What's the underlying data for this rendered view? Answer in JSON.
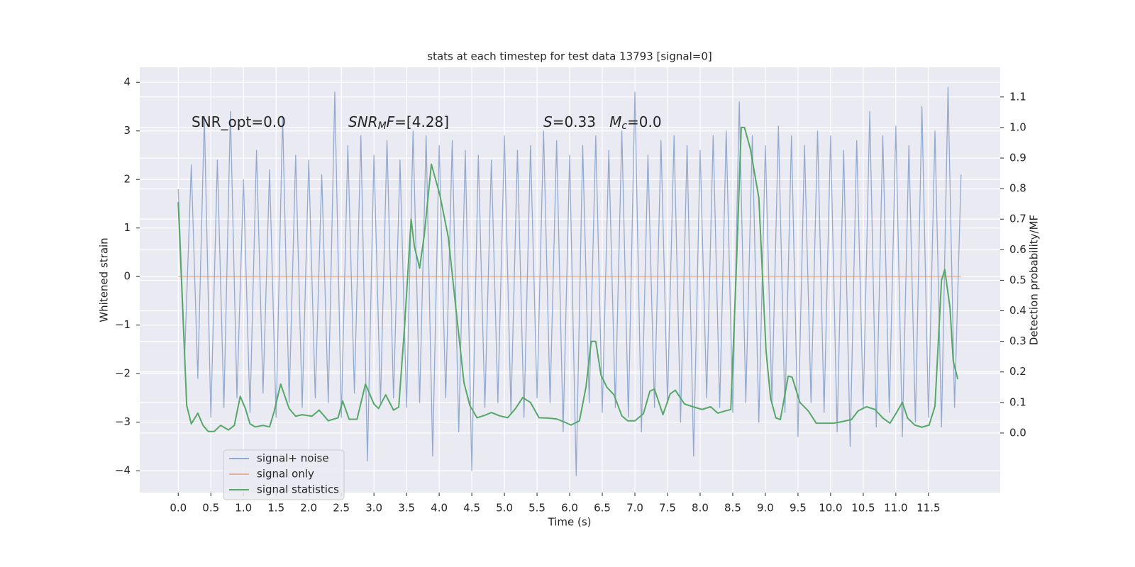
{
  "chart_data": {
    "type": "line",
    "title": "stats at each timestep for test data 13793 [signal=0]",
    "xlabel": "Time (s)",
    "ylabel": "Whitened strain",
    "y2label": "Detection probability/MF",
    "xlim": [
      -0.59,
      12.6
    ],
    "ylim": [
      -4.45,
      4.31
    ],
    "y2lim": [
      -0.195,
      1.197
    ],
    "xticks": [
      {
        "value": 0,
        "label": "0.0"
      },
      0.5,
      {
        "value": 1,
        "label": "1.0"
      },
      1.5,
      {
        "value": 2,
        "label": "2.0"
      },
      2.5,
      {
        "value": 3,
        "label": "3.0"
      },
      3.5,
      {
        "value": 4,
        "label": "4.0"
      },
      4.5,
      {
        "value": 5,
        "label": "5.0"
      },
      5.5,
      {
        "value": 6,
        "label": "6.0"
      },
      6.5,
      {
        "value": 7,
        "label": "7.0"
      },
      7.5,
      {
        "value": 8,
        "label": "8.0"
      },
      8.5,
      {
        "value": 9,
        "label": "9.0"
      },
      9.5,
      {
        "value": 10,
        "label": "10.0"
      },
      10.5,
      {
        "value": 11,
        "label": "11.0"
      },
      11.5
    ],
    "yticks": [
      {
        "value": -4,
        "label": "−4"
      },
      {
        "value": -3,
        "label": "−3"
      },
      {
        "value": -2,
        "label": "−2"
      },
      {
        "value": -1,
        "label": "−1"
      },
      0,
      1,
      2,
      3,
      4
    ],
    "y2ticks": [
      {
        "value": 0,
        "label": "0.0"
      },
      0.1,
      0.2,
      0.3,
      0.4,
      0.5,
      0.6,
      0.7,
      0.8,
      0.9,
      {
        "value": 1,
        "label": "1.0"
      },
      1.1
    ],
    "grid": true,
    "legend": "lower left",
    "annotations": [
      [
        {
          "text": "SNR_opt=0.0"
        }
      ],
      [
        {
          "text": "SNR",
          "italic": true
        },
        {
          "text": "M",
          "italic": true,
          "sub": true
        },
        {
          "text": "F",
          "italic": true
        },
        {
          "text": "=[4.28]"
        }
      ],
      [
        {
          "text": "S",
          "italic": true
        },
        {
          "text": "=0.33   "
        },
        {
          "text": "M",
          "italic": true
        },
        {
          "text": "c",
          "italic": true,
          "sub": true
        },
        {
          "text": "=0.0"
        }
      ]
    ],
    "series": [
      {
        "name": "signal+ noise",
        "color": "#4c72b0",
        "alpha": 0.55,
        "x": [
          0.0,
          0.1,
          0.2,
          0.3,
          0.4,
          0.5,
          0.6,
          0.7,
          0.8,
          0.9,
          1.0,
          1.1,
          1.2,
          1.3,
          1.4,
          1.5,
          1.6,
          1.7,
          1.8,
          1.9,
          2.0,
          2.1,
          2.2,
          2.3,
          2.4,
          2.5,
          2.6,
          2.7,
          2.8,
          2.9,
          3.0,
          3.1,
          3.2,
          3.3,
          3.4,
          3.5,
          3.6,
          3.7,
          3.8,
          3.9,
          4.0,
          4.1,
          4.2,
          4.3,
          4.4,
          4.5,
          4.6,
          4.7,
          4.8,
          4.9,
          5.0,
          5.1,
          5.2,
          5.3,
          5.4,
          5.5,
          5.6,
          5.7,
          5.8,
          5.9,
          6.0,
          6.1,
          6.2,
          6.3,
          6.4,
          6.5,
          6.6,
          6.7,
          6.8,
          6.9,
          7.0,
          7.1,
          7.2,
          7.3,
          7.4,
          7.5,
          7.6,
          7.7,
          7.8,
          7.9,
          8.0,
          8.1,
          8.2,
          8.3,
          8.4,
          8.5,
          8.6,
          8.7,
          8.8,
          8.9,
          9.0,
          9.1,
          9.2,
          9.3,
          9.4,
          9.5,
          9.6,
          9.7,
          9.8,
          9.9,
          10.0,
          10.1,
          10.2,
          10.3,
          10.4,
          10.5,
          10.6,
          10.7,
          10.8,
          10.9,
          11.0,
          11.1,
          11.2,
          11.3,
          11.4,
          11.5,
          11.6,
          11.7,
          11.8,
          11.9,
          12.0
        ],
        "values": [
          1.8,
          -1.6,
          2.3,
          -2.1,
          3.3,
          -2.9,
          2.4,
          -2.7,
          3.4,
          -2.5,
          2.0,
          -2.8,
          2.6,
          -2.4,
          2.2,
          -2.9,
          3.3,
          -2.6,
          2.5,
          -2.7,
          2.4,
          -2.5,
          2.1,
          -2.6,
          3.8,
          -2.9,
          2.7,
          -2.4,
          2.9,
          -3.8,
          2.5,
          -2.6,
          2.8,
          -2.5,
          2.4,
          -2.7,
          3.0,
          -2.6,
          2.9,
          -3.7,
          2.7,
          -2.5,
          2.8,
          -3.2,
          2.6,
          -4.0,
          2.5,
          -2.7,
          2.4,
          -2.6,
          2.9,
          -2.8,
          2.6,
          -2.9,
          2.7,
          -2.5,
          3.0,
          -2.6,
          2.8,
          -3.2,
          2.5,
          -4.1,
          2.7,
          -2.6,
          2.9,
          -2.8,
          2.6,
          -2.7,
          3.0,
          -2.9,
          3.8,
          -3.2,
          2.5,
          -2.7,
          2.8,
          -2.6,
          2.9,
          -3.0,
          2.7,
          -3.7,
          2.6,
          -2.5,
          2.9,
          -2.7,
          3.0,
          -2.8,
          3.6,
          -2.6,
          2.9,
          -3.0,
          2.7,
          -2.6,
          3.1,
          -2.8,
          2.9,
          -3.3,
          2.7,
          -2.6,
          3.0,
          -2.8,
          2.9,
          -3.2,
          2.6,
          -3.5,
          2.8,
          -2.7,
          3.4,
          -3.1,
          2.9,
          -2.8,
          3.1,
          -3.3,
          2.7,
          -3.0,
          3.5,
          -2.9,
          3.0,
          -3.1,
          3.9,
          -2.7,
          2.1
        ]
      },
      {
        "name": "signal only",
        "color": "#dd8452",
        "alpha": 0.55,
        "x": [
          0.0,
          12.0
        ],
        "values": [
          0,
          0
        ]
      },
      {
        "name": "signal statistics",
        "color": "#55a868",
        "axis": "y2",
        "x": [
          0.0,
          0.13,
          0.2,
          0.3,
          0.38,
          0.46,
          0.55,
          0.65,
          0.77,
          0.86,
          0.95,
          1.03,
          1.1,
          1.18,
          1.3,
          1.4,
          1.47,
          1.57,
          1.7,
          1.8,
          1.9,
          2.05,
          2.16,
          2.3,
          2.45,
          2.52,
          2.62,
          2.74,
          2.87,
          3.0,
          3.07,
          3.18,
          3.3,
          3.38,
          3.47,
          3.57,
          3.62,
          3.7,
          3.77,
          3.88,
          4.01,
          4.14,
          4.25,
          4.38,
          4.47,
          4.58,
          4.7,
          4.8,
          4.93,
          5.05,
          5.17,
          5.28,
          5.4,
          5.53,
          5.67,
          5.8,
          5.93,
          6.02,
          6.15,
          6.25,
          6.33,
          6.4,
          6.48,
          6.57,
          6.68,
          6.8,
          6.89,
          7.0,
          7.13,
          7.23,
          7.3,
          7.43,
          7.54,
          7.62,
          7.76,
          7.89,
          8.03,
          8.16,
          8.27,
          8.38,
          8.47,
          8.55,
          8.63,
          8.68,
          8.77,
          8.9,
          9.01,
          9.08,
          9.16,
          9.23,
          9.35,
          9.41,
          9.53,
          9.66,
          9.78,
          9.9,
          10.04,
          10.17,
          10.32,
          10.42,
          10.55,
          10.68,
          10.8,
          10.91,
          11.0,
          11.1,
          11.18,
          11.29,
          11.4,
          11.51,
          11.6,
          11.7,
          11.75,
          11.83,
          11.88,
          11.95
        ],
        "values": [
          0.756,
          0.09,
          0.03,
          0.065,
          0.025,
          0.005,
          0.005,
          0.025,
          0.01,
          0.025,
          0.12,
          0.08,
          0.03,
          0.02,
          0.025,
          0.02,
          0.07,
          0.16,
          0.08,
          0.055,
          0.06,
          0.055,
          0.075,
          0.04,
          0.05,
          0.105,
          0.045,
          0.045,
          0.16,
          0.095,
          0.08,
          0.125,
          0.075,
          0.085,
          0.35,
          0.7,
          0.61,
          0.54,
          0.645,
          0.88,
          0.78,
          0.64,
          0.42,
          0.165,
          0.09,
          0.05,
          0.058,
          0.067,
          0.056,
          0.05,
          0.08,
          0.116,
          0.1,
          0.05,
          0.049,
          0.046,
          0.035,
          0.026,
          0.04,
          0.15,
          0.3,
          0.3,
          0.19,
          0.15,
          0.125,
          0.056,
          0.04,
          0.04,
          0.063,
          0.137,
          0.144,
          0.06,
          0.128,
          0.14,
          0.095,
          0.086,
          0.077,
          0.086,
          0.065,
          0.072,
          0.077,
          0.51,
          1.0,
          1.0,
          0.93,
          0.77,
          0.27,
          0.114,
          0.05,
          0.044,
          0.186,
          0.183,
          0.1,
          0.072,
          0.032,
          0.032,
          0.032,
          0.037,
          0.044,
          0.072,
          0.086,
          0.077,
          0.049,
          0.032,
          0.063,
          0.1,
          0.049,
          0.026,
          0.019,
          0.026,
          0.088,
          0.5,
          0.535,
          0.41,
          0.235,
          0.176
        ]
      }
    ]
  }
}
